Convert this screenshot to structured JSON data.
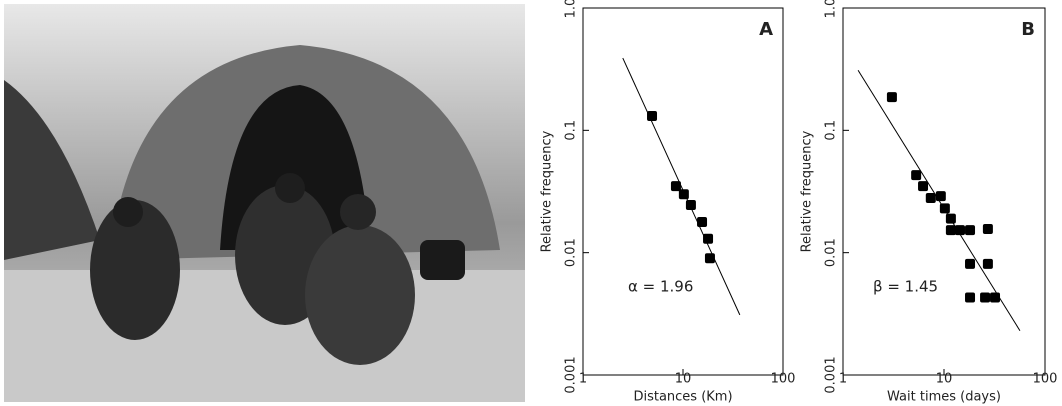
{
  "chart_data": [
    {
      "type": "scatter",
      "panel_label": "A",
      "x_label": "Distances (Km)",
      "y_label": "Relative frequency",
      "annotation": "α = 1.96",
      "log_x": true,
      "log_y": true,
      "color": "#000000",
      "x": [
        4.9,
        8.5,
        10.2,
        12,
        15.5,
        17.8,
        18.6
      ],
      "values": [
        0.131,
        0.035,
        0.03,
        0.0245,
        0.0178,
        0.013,
        0.009
      ],
      "fit": {
        "x": [
          2.5,
          37
        ],
        "values": [
          0.39,
          0.0031
        ]
      },
      "xlim": [
        1,
        100
      ],
      "xticks": [
        1,
        10,
        100
      ],
      "ylim": [
        0.001,
        1
      ],
      "yticks": [
        0.001,
        0.01,
        0.1,
        {
          "value": 1,
          "label": "1.0"
        }
      ]
    },
    {
      "type": "scatter",
      "panel_label": "B",
      "x_label": "Wait times (days)",
      "y_label": "Relative frequency",
      "annotation": "β = 1.45",
      "log_x": true,
      "log_y": true,
      "color": "#000000",
      "x": [
        3.05,
        5.3,
        6.2,
        7.4,
        9.3,
        10.2,
        11.7,
        11.7,
        14.4,
        18.1,
        18.1,
        18.1,
        25.5,
        27.2,
        27.2,
        32
      ],
      "values": [
        0.187,
        0.043,
        0.035,
        0.028,
        0.029,
        0.023,
        0.019,
        0.0153,
        0.0153,
        0.0153,
        0.0081,
        0.0043,
        0.0043,
        0.0156,
        0.0081,
        0.0043
      ],
      "fit": {
        "x": [
          1.41,
          56.5
        ],
        "values": [
          0.31,
          0.0023
        ]
      },
      "xlim": [
        1,
        100
      ],
      "xticks": [
        1,
        10,
        100
      ],
      "ylim": [
        0.001,
        1
      ],
      "yticks": [
        0.001,
        0.01,
        0.1,
        {
          "value": 1,
          "label": "1.0"
        }
      ]
    }
  ]
}
